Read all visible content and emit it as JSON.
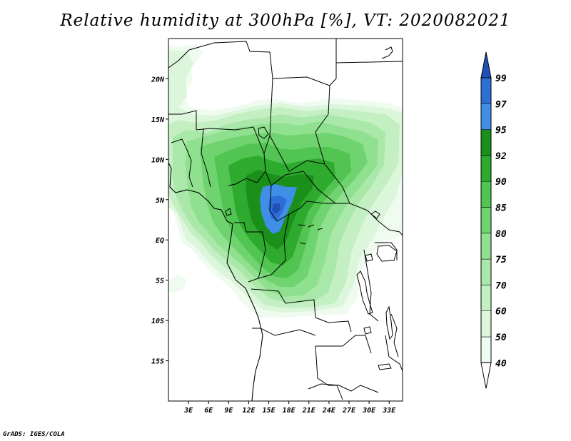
{
  "title": "Relative humidity at 300hPa [%], VT: 2020082021",
  "credit": "GrADS: IGES/COLA",
  "colors": {
    "c40": "#f0fbf0",
    "c50": "#dcf6dc",
    "c60": "#c3efc3",
    "c70": "#aae8aa",
    "c75": "#8fe08f",
    "c80": "#6fd46f",
    "c85": "#52c452",
    "c90": "#2eaa2e",
    "c92": "#1a8f1a",
    "c95": "#3f8fe6",
    "c97": "#2d6fd6",
    "c99": "#1f50b8"
  },
  "chart_data": {
    "type": "heatmap",
    "title": "Relative humidity at 300hPa [%], VT: 2020082021",
    "variable": "Relative humidity",
    "level": "300hPa",
    "units": "%",
    "valid_time": "2020082021",
    "x_axis": {
      "range_deg": [
        0,
        35
      ],
      "ticks": [
        {
          "value": 3,
          "label": "3E"
        },
        {
          "value": 6,
          "label": "6E"
        },
        {
          "value": 9,
          "label": "9E"
        },
        {
          "value": 12,
          "label": "12E"
        },
        {
          "value": 15,
          "label": "15E"
        },
        {
          "value": 18,
          "label": "18E"
        },
        {
          "value": 21,
          "label": "21E"
        },
        {
          "value": 24,
          "label": "24E"
        },
        {
          "value": 27,
          "label": "27E"
        },
        {
          "value": 30,
          "label": "30E"
        },
        {
          "value": 33,
          "label": "33E"
        }
      ]
    },
    "y_axis": {
      "range_deg": [
        -20,
        25
      ],
      "ticks": [
        {
          "value": 20,
          "label": "20N"
        },
        {
          "value": 15,
          "label": "15N"
        },
        {
          "value": 10,
          "label": "10N"
        },
        {
          "value": 5,
          "label": "5N"
        },
        {
          "value": 0,
          "label": "EQ"
        },
        {
          "value": -5,
          "label": "5S"
        },
        {
          "value": -10,
          "label": "10S"
        },
        {
          "value": -15,
          "label": "15S"
        }
      ]
    },
    "colorbar": {
      "levels": [
        "40",
        "50",
        "60",
        "70",
        "75",
        "80",
        "85",
        "90",
        "92",
        "95",
        "97",
        "99"
      ],
      "colors": [
        "#f0fbf0",
        "#dcf6dc",
        "#c3efc3",
        "#aae8aa",
        "#8fe08f",
        "#6fd46f",
        "#52c452",
        "#2eaa2e",
        "#1a8f1a",
        "#3f8fe6",
        "#2d6fd6",
        "#1f50b8"
      ]
    }
  }
}
